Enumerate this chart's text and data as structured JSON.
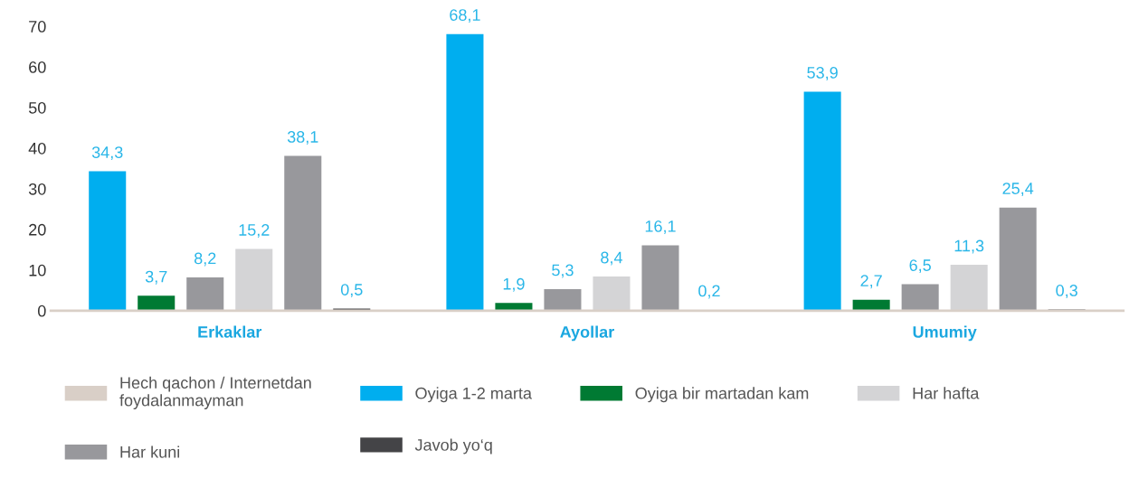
{
  "chart_data": {
    "type": "bar",
    "categories": [
      "Erkaklar",
      "Ayollar",
      "Umumiy"
    ],
    "series": [
      {
        "name": "Hech qachon / Internetdan\nfoydalanmayman",
        "color": "#d9cfc7",
        "values": [
          null,
          null,
          null
        ]
      },
      {
        "name": "Oyiga 1-2 marta",
        "color": "#00aeef",
        "values": [
          34.3,
          68.1,
          53.9
        ],
        "value_labels": [
          "34,3",
          "68,1",
          "53,9"
        ]
      },
      {
        "name": "Oyiga bir martadan kam",
        "color": "#007a33",
        "values": [
          3.7,
          1.9,
          2.7
        ],
        "value_labels": [
          "3,7",
          "1,9",
          "2,7"
        ]
      },
      {
        "color": "#98989c",
        "values": [
          8.2,
          5.3,
          6.5
        ],
        "value_labels": [
          "8,2",
          "5,3",
          "6,5"
        ]
      },
      {
        "name": "Har hafta",
        "color": "#d4d4d6",
        "values": [
          15.2,
          8.4,
          11.3
        ],
        "value_labels": [
          "15,2",
          "8,4",
          "11,3"
        ]
      },
      {
        "name": "Har kuni",
        "color": "#98989c",
        "values": [
          38.1,
          16.1,
          25.4
        ],
        "value_labels": [
          "38,1",
          "16,1",
          "25,4"
        ]
      },
      {
        "name": "Javob yo‘q",
        "color": "#444447",
        "values": [
          0.5,
          0.2,
          0.3
        ],
        "value_labels": [
          "0,5",
          "0,2",
          "0,3"
        ]
      }
    ],
    "ylim": [
      0,
      70
    ],
    "yticks": [
      0,
      10,
      20,
      30,
      40,
      50,
      60,
      70
    ],
    "grid": false,
    "legend": "bottom"
  }
}
